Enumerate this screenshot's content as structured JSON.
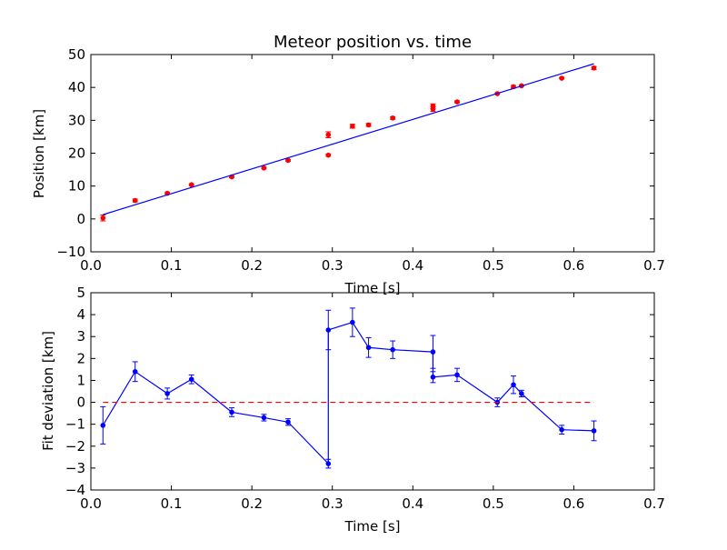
{
  "chart_data": [
    {
      "type": "scatter",
      "title": "Meteor position vs. time",
      "xlabel": "Time [s]",
      "ylabel": "Position [km]",
      "xlim": [
        0.0,
        0.7
      ],
      "ylim": [
        -10,
        50
      ],
      "xticks": [
        "0.0",
        "0.1",
        "0.2",
        "0.3",
        "0.4",
        "0.5",
        "0.6",
        "0.7"
      ],
      "yticks": [
        "−10",
        "0",
        "10",
        "20",
        "30",
        "40",
        "50"
      ],
      "xtick_values": [
        0.0,
        0.1,
        0.2,
        0.3,
        0.4,
        0.5,
        0.6,
        0.7
      ],
      "ytick_values": [
        -10,
        0,
        10,
        20,
        30,
        40,
        50
      ],
      "grid": false,
      "series": [
        {
          "kind": "errorbar-points",
          "color": "#ff0000",
          "x": [
            0.015,
            0.055,
            0.095,
            0.125,
            0.175,
            0.215,
            0.245,
            0.295,
            0.295,
            0.325,
            0.345,
            0.375,
            0.425,
            0.425,
            0.455,
            0.505,
            0.525,
            0.535,
            0.585,
            0.625
          ],
          "y": [
            0.3,
            5.6,
            7.8,
            10.4,
            12.8,
            15.5,
            17.8,
            19.4,
            25.6,
            28.2,
            28.6,
            30.7,
            33.4,
            34.3,
            35.6,
            38.1,
            40.2,
            40.5,
            42.8,
            45.9
          ],
          "err": [
            0.9,
            0.45,
            0.25,
            0.25,
            0.25,
            0.25,
            0.25,
            0.3,
            0.9,
            0.6,
            0.45,
            0.4,
            0.7,
            0.7,
            0.3,
            0.2,
            0.4,
            0.15,
            0.2,
            0.45
          ]
        },
        {
          "kind": "line",
          "color": "#0000ff",
          "x": [
            0.015,
            0.625
          ],
          "y": [
            1.3,
            47.2
          ]
        }
      ]
    },
    {
      "type": "line",
      "title": "",
      "xlabel": "Time [s]",
      "ylabel": "Fit deviation [km]",
      "xlim": [
        0.0,
        0.7
      ],
      "ylim": [
        -4,
        5
      ],
      "xticks": [
        "0.0",
        "0.1",
        "0.2",
        "0.3",
        "0.4",
        "0.5",
        "0.6",
        "0.7"
      ],
      "yticks": [
        "−4",
        "−3",
        "−2",
        "−1",
        "0",
        "1",
        "2",
        "3",
        "4",
        "5"
      ],
      "xtick_values": [
        0.0,
        0.1,
        0.2,
        0.3,
        0.4,
        0.5,
        0.6,
        0.7
      ],
      "ytick_values": [
        -4,
        -3,
        -2,
        -1,
        0,
        1,
        2,
        3,
        4,
        5
      ],
      "grid": false,
      "series": [
        {
          "kind": "errorbar-line",
          "color": "#0000ff",
          "x": [
            0.015,
            0.055,
            0.095,
            0.125,
            0.175,
            0.215,
            0.245,
            0.295,
            0.295,
            0.325,
            0.345,
            0.375,
            0.425,
            0.425,
            0.455,
            0.505,
            0.525,
            0.535,
            0.585,
            0.625
          ],
          "y": [
            -1.05,
            1.4,
            0.4,
            1.05,
            -0.45,
            -0.7,
            -0.9,
            -2.8,
            3.3,
            3.65,
            2.5,
            2.4,
            2.3,
            1.15,
            1.25,
            0.0,
            0.8,
            0.4,
            -1.25,
            -1.3
          ],
          "err": [
            0.85,
            0.45,
            0.25,
            0.2,
            0.2,
            0.15,
            0.15,
            0.2,
            0.9,
            0.65,
            0.45,
            0.4,
            0.75,
            0.25,
            0.3,
            0.2,
            0.4,
            0.15,
            0.2,
            0.45
          ]
        },
        {
          "kind": "dashed-reference",
          "color": "#ff0000",
          "x": [
            0.015,
            0.625
          ],
          "y": [
            0,
            0
          ]
        }
      ]
    }
  ]
}
